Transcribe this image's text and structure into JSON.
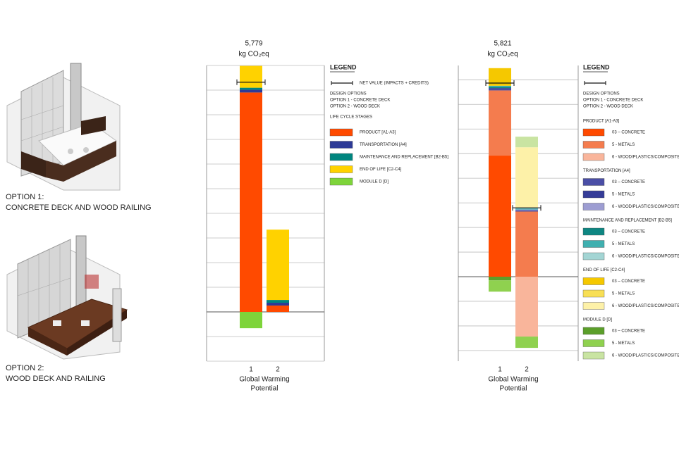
{
  "options": [
    {
      "title": "OPTION 1:",
      "subtitle": "CONCRETE DECK AND WOOD RAILING"
    },
    {
      "title": "OPTION 2:",
      "subtitle": "WOOD DECK AND RAILING"
    }
  ],
  "chart_data": [
    {
      "type": "bar",
      "stacked": true,
      "unit": "kg CO₂eq",
      "net": [
        5779,
        null
      ],
      "net_labels": [
        "5,779",
        null
      ],
      "categories": [
        "1",
        "2"
      ],
      "x_label": [
        "Global Warming",
        "Potential"
      ],
      "ylim": [
        -1240,
        6200
      ],
      "gridlines": [
        -1240,
        -620,
        0,
        620,
        1240,
        1860,
        2480,
        3100,
        3720,
        4340,
        4960,
        5580,
        6200
      ],
      "legend": {
        "title": "LEGEND",
        "net_label": "NET VALUE (IMPACTS + CREDITS)",
        "options_title": "DESIGN OPTIONS",
        "options": [
          "OPTION 1 - CONCRETE DECK",
          "OPTION 2 - WOOD DECK"
        ],
        "stages_title": "LIFE CYCLE STAGES"
      },
      "series": [
        {
          "name": "PRODUCT [A1-A3]",
          "color": "#ff4a00",
          "values": [
            5520,
            160
          ]
        },
        {
          "name": "TRANSPORTATION [A4]",
          "color": "#2d3a96",
          "values": [
            70,
            70
          ]
        },
        {
          "name": "MAINTENANCE AND REPLACEMENT [B2-B5]",
          "color": "#00857f",
          "values": [
            50,
            70
          ]
        },
        {
          "name": "END OF LIFE [C2-C4]",
          "color": "#ffd200",
          "values": [
            550,
            1770
          ]
        },
        {
          "name": "MODULE D [D]",
          "color": "#7ed43a",
          "values": [
            -410,
            0
          ]
        }
      ]
    },
    {
      "type": "bar",
      "stacked": true,
      "unit": "kg CO₂eq",
      "net": [
        5821,
        2070
      ],
      "net_labels": [
        "5,821",
        null
      ],
      "categories": [
        "1",
        "2"
      ],
      "x_label": [
        "Global Warming",
        "Potential"
      ],
      "ylim": [
        -2540,
        6350
      ],
      "gridlines": [
        -2220,
        -1480,
        -740,
        0,
        740,
        1480,
        2220,
        2960,
        3700,
        4440,
        5180,
        5920
      ],
      "legend": {
        "title": "LEGEND",
        "options_title": "DESIGN OPTIONS",
        "options": [
          "OPTION 1 - CONCRETE DECK",
          "OPTION 2 - WOOD DECK"
        ]
      },
      "groups": [
        {
          "name": "PRODUCT [A1-A3]",
          "series": [
            {
              "name": "03 – CONCRETE",
              "color": "#ff4a00",
              "values": [
                3640,
                0
              ]
            },
            {
              "name": "5 - METALS",
              "color": "#f47c4e",
              "values": [
                1960,
                1960
              ]
            },
            {
              "name": "6 - WOOD/PLASTICS/COMPOSITES",
              "color": "#f9b59b",
              "values": [
                0,
                -1800
              ]
            }
          ]
        },
        {
          "name": "TRANSPORTATION [A4]",
          "series": [
            {
              "name": "03 – CONCRETE",
              "color": "#4a4ea6",
              "values": [
                40,
                0
              ]
            },
            {
              "name": "5 - METALS",
              "color": "#353c98",
              "values": [
                30,
                30
              ]
            },
            {
              "name": "6 - WOOD/PLASTICS/COMPOSITES",
              "color": "#9d9dd2",
              "values": [
                0,
                30
              ]
            }
          ]
        },
        {
          "name": "MAINTENANCE AND REPLACEMENT [B2-B5]",
          "series": [
            {
              "name": "03 – CONCRETE",
              "color": "#0e8682",
              "values": [
                40,
                0
              ]
            },
            {
              "name": "5 - METALS",
              "color": "#3fb0b0",
              "values": [
                30,
                30
              ]
            },
            {
              "name": "6 - WOOD/PLASTICS/COMPOSITES",
              "color": "#a3d5d4",
              "values": [
                0,
                30
              ]
            }
          ]
        },
        {
          "name": "END OF LIFE [C2-C4]",
          "series": [
            {
              "name": "03 – CONCRETE",
              "color": "#f5c800",
              "values": [
                530,
                0
              ]
            },
            {
              "name": "5 - METALS",
              "color": "#f8df55",
              "values": [
                0,
                0
              ]
            },
            {
              "name": "6 - WOOD/PLASTICS/COMPOSITES",
              "color": "#fdf1a8",
              "values": [
                0,
                1810
              ]
            }
          ]
        },
        {
          "name": "MODULE D [D]",
          "series": [
            {
              "name": "03 – CONCRETE",
              "color": "#5b9f2a",
              "values": [
                -110,
                0
              ]
            },
            {
              "name": "5 - METALS",
              "color": "#8fd14f",
              "values": [
                -340,
                -340
              ]
            },
            {
              "name": "6 - WOOD/PLASTICS/COMPOSITES",
              "color": "#c9e4a2",
              "values": [
                0,
                320
              ]
            }
          ]
        }
      ]
    }
  ]
}
